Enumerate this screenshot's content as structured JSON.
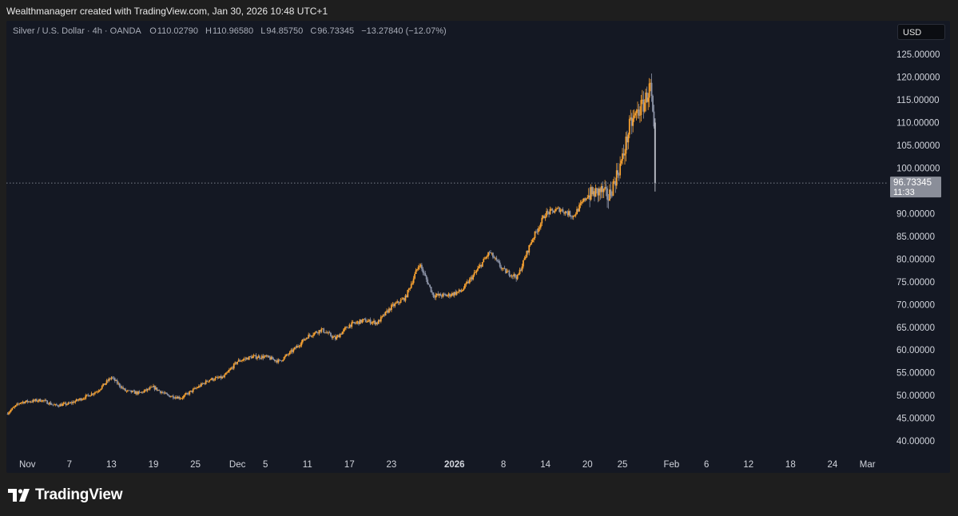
{
  "header": {
    "created_text": "Wealthmanagerr created with TradingView.com, Jan 30, 2026 10:48 UTC+1"
  },
  "legend": {
    "symbol": "Silver / U.S. Dollar · 4h · OANDA",
    "open_label": "O",
    "open": "110.02790",
    "high_label": "H",
    "high": "110.96580",
    "low_label": "L",
    "low": "94.85750",
    "close_label": "C",
    "close": "96.73345",
    "change": "−13.27840 (−12.07%)"
  },
  "currency_button": "USD",
  "price_tag": {
    "price": "96.73345",
    "countdown": "11:33"
  },
  "brand": {
    "name": "TradingView"
  },
  "colors": {
    "up": "#f7a130",
    "down": "#8d94a8",
    "last_down": "#b2b5be",
    "price_tag_bg": "#8a8e99",
    "background": "#141823"
  },
  "chart_data": {
    "type": "candlestick",
    "title": "Silver / U.S. Dollar · 4h · OANDA",
    "y_ticks": [
      "125.00000",
      "120.00000",
      "115.00000",
      "110.00000",
      "105.00000",
      "100.00000",
      "95.00000",
      "90.00000",
      "85.00000",
      "80.00000",
      "75.00000",
      "70.00000",
      "65.00000",
      "60.00000",
      "55.00000",
      "50.00000",
      "45.00000",
      "40.00000"
    ],
    "y_tick_values": [
      125,
      120,
      115,
      110,
      105,
      100,
      95,
      90,
      85,
      80,
      75,
      70,
      65,
      60,
      55,
      50,
      45,
      40
    ],
    "ylim": [
      36.5,
      127.5
    ],
    "x_ticks": [
      {
        "label": "Nov",
        "date": "2025-11-01",
        "bold": false
      },
      {
        "label": "7",
        "date": "2025-11-07",
        "bold": false
      },
      {
        "label": "13",
        "date": "2025-11-13",
        "bold": false
      },
      {
        "label": "19",
        "date": "2025-11-19",
        "bold": false
      },
      {
        "label": "25",
        "date": "2025-11-25",
        "bold": false
      },
      {
        "label": "Dec",
        "date": "2025-12-01",
        "bold": false
      },
      {
        "label": "5",
        "date": "2025-12-05",
        "bold": false
      },
      {
        "label": "11",
        "date": "2025-12-11",
        "bold": false
      },
      {
        "label": "17",
        "date": "2025-12-17",
        "bold": false
      },
      {
        "label": "23",
        "date": "2025-12-23",
        "bold": false
      },
      {
        "label": "2026",
        "date": "2026-01-01",
        "bold": true
      },
      {
        "label": "8",
        "date": "2026-01-08",
        "bold": false
      },
      {
        "label": "14",
        "date": "2026-01-14",
        "bold": false
      },
      {
        "label": "20",
        "date": "2026-01-20",
        "bold": false
      },
      {
        "label": "25",
        "date": "2026-01-25",
        "bold": false
      },
      {
        "label": "Feb",
        "date": "2026-02-01",
        "bold": false
      },
      {
        "label": "6",
        "date": "2026-02-06",
        "bold": false
      },
      {
        "label": "12",
        "date": "2026-02-12",
        "bold": false
      },
      {
        "label": "18",
        "date": "2026-02-18",
        "bold": false
      },
      {
        "label": "24",
        "date": "2026-02-24",
        "bold": false
      },
      {
        "label": "Mar",
        "date": "2026-03-01",
        "bold": false
      }
    ],
    "xlim": [
      "2025-10-29",
      "2026-03-04"
    ],
    "current_price": 96.73345,
    "series": [
      {
        "name": "Silver / U.S. Dollar",
        "closes": [
          {
            "date": "2025-10-29",
            "close": 46.0
          },
          {
            "date": "2025-10-31",
            "close": 48.5
          },
          {
            "date": "2025-11-03",
            "close": 49.0
          },
          {
            "date": "2025-11-05",
            "close": 47.8
          },
          {
            "date": "2025-11-07",
            "close": 48.2
          },
          {
            "date": "2025-11-09",
            "close": 49.5
          },
          {
            "date": "2025-11-11",
            "close": 51.0
          },
          {
            "date": "2025-11-13",
            "close": 54.0
          },
          {
            "date": "2025-11-15",
            "close": 51.0
          },
          {
            "date": "2025-11-17",
            "close": 50.5
          },
          {
            "date": "2025-11-19",
            "close": 51.8
          },
          {
            "date": "2025-11-21",
            "close": 50.0
          },
          {
            "date": "2025-11-23",
            "close": 49.5
          },
          {
            "date": "2025-11-25",
            "close": 51.5
          },
          {
            "date": "2025-11-27",
            "close": 53.5
          },
          {
            "date": "2025-11-29",
            "close": 54.0
          },
          {
            "date": "2025-12-01",
            "close": 57.5
          },
          {
            "date": "2025-12-03",
            "close": 58.5
          },
          {
            "date": "2025-12-05",
            "close": 58.5
          },
          {
            "date": "2025-12-07",
            "close": 57.5
          },
          {
            "date": "2025-12-09",
            "close": 60.0
          },
          {
            "date": "2025-12-11",
            "close": 63.0
          },
          {
            "date": "2025-12-13",
            "close": 64.5
          },
          {
            "date": "2025-12-15",
            "close": 62.5
          },
          {
            "date": "2025-12-17",
            "close": 65.5
          },
          {
            "date": "2025-12-19",
            "close": 66.5
          },
          {
            "date": "2025-12-21",
            "close": 66.0
          },
          {
            "date": "2025-12-23",
            "close": 69.5
          },
          {
            "date": "2025-12-25",
            "close": 71.5
          },
          {
            "date": "2025-12-27",
            "close": 79.0
          },
          {
            "date": "2025-12-29",
            "close": 72.0
          },
          {
            "date": "2025-12-31",
            "close": 72.0
          },
          {
            "date": "2026-01-02",
            "close": 73.0
          },
          {
            "date": "2026-01-04",
            "close": 77.0
          },
          {
            "date": "2026-01-06",
            "close": 81.5
          },
          {
            "date": "2026-01-08",
            "close": 77.5
          },
          {
            "date": "2026-01-10",
            "close": 76.0
          },
          {
            "date": "2026-01-12",
            "close": 84.0
          },
          {
            "date": "2026-01-14",
            "close": 90.0
          },
          {
            "date": "2026-01-16",
            "close": 91.0
          },
          {
            "date": "2026-01-18",
            "close": 89.5
          },
          {
            "date": "2026-01-20",
            "close": 94.0
          },
          {
            "date": "2026-01-22",
            "close": 95.0
          },
          {
            "date": "2026-01-23",
            "close": 93.5
          },
          {
            "date": "2026-01-25",
            "close": 102.0
          },
          {
            "date": "2026-01-26",
            "close": 109.0
          },
          {
            "date": "2026-01-27",
            "close": 112.0
          },
          {
            "date": "2026-01-28",
            "close": 114.0
          },
          {
            "date": "2026-01-29",
            "close": 118.0
          },
          {
            "date": "2026-01-30",
            "close": 96.73345
          }
        ]
      }
    ]
  }
}
